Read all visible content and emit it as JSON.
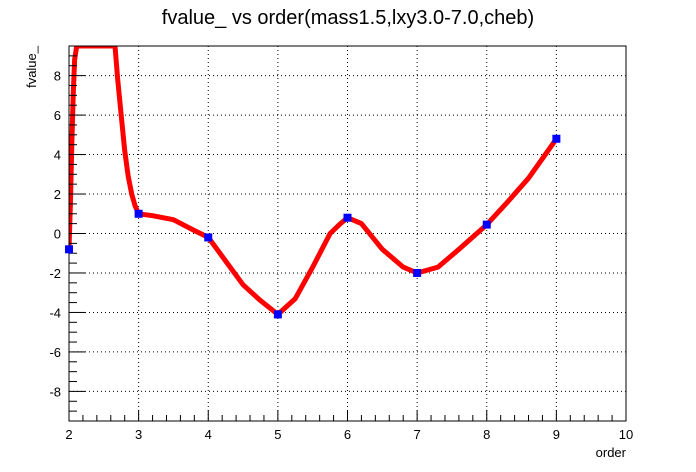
{
  "chart_data": {
    "type": "line",
    "title": "fvalue_ vs order(mass1.5,lxy3.0-7.0,cheb)",
    "xlabel": "order",
    "ylabel": "fvalue_",
    "xlim": [
      2,
      10
    ],
    "ylim": [
      -9.5,
      9.5
    ],
    "x_ticks": [
      2,
      3,
      4,
      5,
      6,
      7,
      8,
      9,
      10
    ],
    "y_ticks": [
      -8,
      -6,
      -4,
      -2,
      0,
      2,
      4,
      6,
      8
    ],
    "grid": true,
    "legend": "none",
    "series": [
      {
        "kind": "points",
        "color": "#0000ff",
        "x": [
          2,
          3,
          4,
          5,
          6,
          7,
          8,
          9
        ],
        "y": [
          -0.8,
          1.0,
          -0.2,
          -4.1,
          0.8,
          -2.0,
          0.45,
          4.8
        ]
      },
      {
        "kind": "curve",
        "color": "#ff0000",
        "x": [
          2.0,
          2.02,
          2.04,
          2.06,
          2.08,
          2.11,
          2.14,
          2.18,
          2.22,
          2.25,
          2.3,
          2.35,
          2.4,
          2.45,
          2.5,
          2.55,
          2.62,
          2.66,
          2.7,
          2.75,
          2.8,
          2.85,
          2.9,
          2.95,
          3.0,
          3.2,
          3.5,
          3.8,
          4.0,
          4.25,
          4.5,
          4.75,
          5.0,
          5.25,
          5.5,
          5.75,
          5.9,
          6.0,
          6.2,
          6.5,
          6.8,
          7.0,
          7.3,
          7.6,
          8.0,
          8.3,
          8.6,
          8.8,
          9.0
        ],
        "y": [
          -0.8,
          1.5,
          4.5,
          7.0,
          8.8,
          9.5,
          9.5,
          9.5,
          9.5,
          9.5,
          9.5,
          9.5,
          9.5,
          9.5,
          9.5,
          9.5,
          9.5,
          9.5,
          7.8,
          6.0,
          4.2,
          2.9,
          2.0,
          1.4,
          1.0,
          0.9,
          0.7,
          0.15,
          -0.2,
          -1.4,
          -2.6,
          -3.4,
          -4.1,
          -3.3,
          -1.7,
          0.0,
          0.5,
          0.8,
          0.5,
          -0.8,
          -1.7,
          -2.0,
          -1.7,
          -0.8,
          0.45,
          1.6,
          2.8,
          3.8,
          4.8
        ]
      }
    ]
  }
}
